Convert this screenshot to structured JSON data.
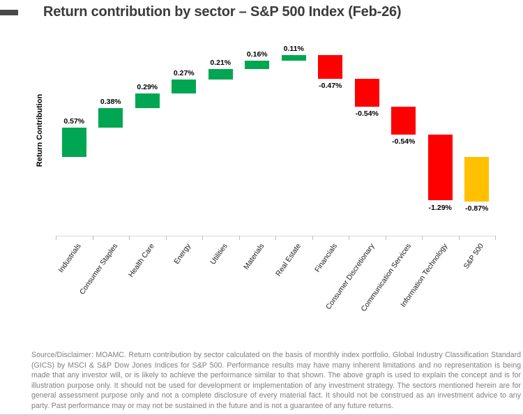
{
  "header": {
    "title": "Return contribution by sector – S&P 500 Index (Feb-26)"
  },
  "chart_data": {
    "type": "bar",
    "subtype": "waterfall",
    "title": "Return contribution by sector – S&P 500 Index (Feb-26)",
    "xlabel": "",
    "ylabel": "Return Contribution",
    "categories": [
      "Industrials",
      "Consumer Staples",
      "Health Care",
      "Energy",
      "Utilities",
      "Materials",
      "Real Estate",
      "Financials",
      "Consumer Discretionary",
      "Communication Services",
      "Information Technology",
      "S&P 500"
    ],
    "values": [
      0.57,
      0.38,
      0.29,
      0.27,
      0.21,
      0.16,
      0.11,
      -0.47,
      -0.54,
      -0.54,
      -1.29,
      -0.87
    ],
    "value_labels": [
      "0.57%",
      "0.38%",
      "0.29%",
      "0.27%",
      "0.21%",
      "0.16%",
      "0.11%",
      "-0.47%",
      "-0.54%",
      "-0.54%",
      "-1.29%",
      "-0.87%"
    ],
    "bar_roles": [
      "increase",
      "increase",
      "increase",
      "increase",
      "increase",
      "increase",
      "increase",
      "decrease",
      "decrease",
      "decrease",
      "decrease",
      "total"
    ],
    "colors": {
      "increase": "#00a651",
      "decrease": "#ff0000",
      "total": "#ffc000"
    },
    "ylim": [
      -1.5,
      2.2
    ],
    "grid": false,
    "legend": false,
    "waterfall_note": "Each sector bar starts at the running total of previous bars; the final S&P 500 total bar starts at zero."
  },
  "footer": {
    "disclaimer": "Source/Disclaimer: MOAMC. Return contribution by sector calculated on the basis of monthly index portfolio. Global Industry Classification Standard (GICS) by MSCI & S&P Dow Jones Indices for S&P 500. Performance results may have many inherent limitations and no representation is being made that any investor will, or is likely to achieve the performance similar to that shown. The above graph is used to explain the concept and is for illustration purpose only. It should not be used for development or implementation of any investment strategy. The sectors mentioned herein are for general assessment purpose only and not a complete disclosure of every material fact. It should not be construed as an investment advice to any party. Past performance may or may not be sustained in the future and is not a guarantee of any future returns."
  }
}
